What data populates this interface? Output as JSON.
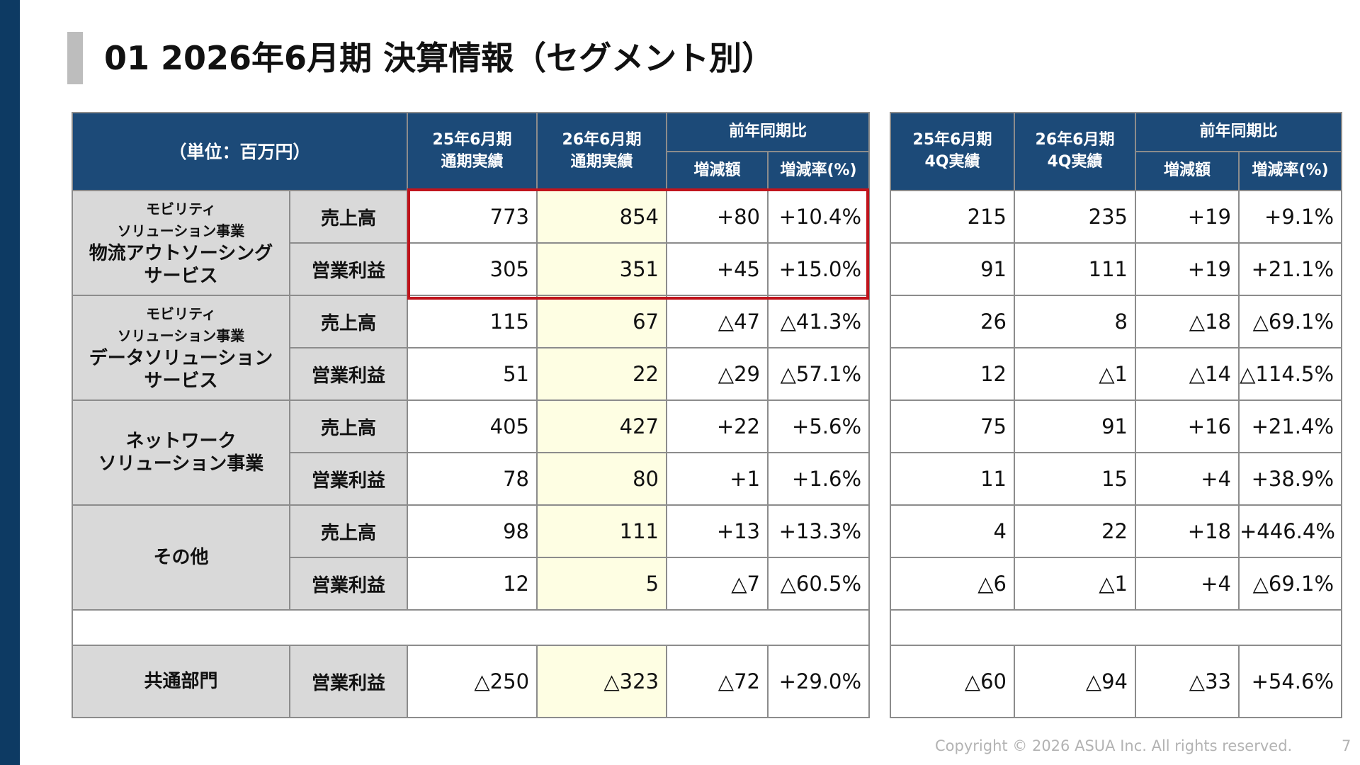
{
  "title": "01 2026年6月期 決算情報（セグメント別）",
  "header": {
    "unit": "（単位：百万円）",
    "full_prev": [
      "25年6月期",
      "通期実績"
    ],
    "full_cur": [
      "26年6月期",
      "通期実績"
    ],
    "q4_prev": [
      "25年6月期",
      "4Q実績"
    ],
    "q4_cur": [
      "26年6月期",
      "4Q実績"
    ],
    "yoy": "前年同期比",
    "diff": "増減額",
    "rate": "増減率(%)"
  },
  "segments": [
    {
      "label_small": [
        "モビリティ",
        "ソリューション事業"
      ],
      "label_main": [
        "物流アウトソーシング",
        "サービス"
      ],
      "rows": [
        {
          "metric": "売上高",
          "values": [
            "773",
            "854",
            "+80",
            "+10.4%",
            "215",
            "235",
            "+19",
            "+9.1%"
          ]
        },
        {
          "metric": "営業利益",
          "values": [
            "305",
            "351",
            "+45",
            "+15.0%",
            "91",
            "111",
            "+19",
            "+21.1%"
          ]
        }
      ]
    },
    {
      "label_small": [
        "モビリティ",
        "ソリューション事業"
      ],
      "label_main": [
        "データソリューション",
        "サービス"
      ],
      "rows": [
        {
          "metric": "売上高",
          "values": [
            "115",
            "67",
            "△47",
            "△41.3%",
            "26",
            "8",
            "△18",
            "△69.1%"
          ]
        },
        {
          "metric": "営業利益",
          "values": [
            "51",
            "22",
            "△29",
            "△57.1%",
            "12",
            "△1",
            "△14",
            "△114.5%"
          ]
        }
      ]
    },
    {
      "label_main": [
        "ネットワーク",
        "ソリューション事業"
      ],
      "rows": [
        {
          "metric": "売上高",
          "values": [
            "405",
            "427",
            "+22",
            "+5.6%",
            "75",
            "91",
            "+16",
            "+21.4%"
          ]
        },
        {
          "metric": "営業利益",
          "values": [
            "78",
            "80",
            "+1",
            "+1.6%",
            "11",
            "15",
            "+4",
            "+38.9%"
          ]
        }
      ]
    },
    {
      "label_main": [
        "その他"
      ],
      "rows": [
        {
          "metric": "売上高",
          "values": [
            "98",
            "111",
            "+13",
            "+13.3%",
            "4",
            "22",
            "+18",
            "+446.4%"
          ]
        },
        {
          "metric": "営業利益",
          "values": [
            "12",
            "5",
            "△7",
            "△60.5%",
            "△6",
            "△1",
            "+4",
            "△69.1%"
          ]
        }
      ]
    }
  ],
  "common": {
    "label": "共通部門",
    "metric": "営業利益",
    "values": [
      "△250",
      "△323",
      "△72",
      "+29.0%",
      "△60",
      "△94",
      "△33",
      "+54.6%"
    ]
  },
  "footer": {
    "copyright": "Copyright © 2026 ASUA Inc. All rights reserved.",
    "page": "7"
  },
  "colors": {
    "header_bg": "#1c4a78",
    "label_bg": "#d9d9d9",
    "highlight_col": "#fefee3",
    "highlight_border": "#c0141c",
    "left_band": "#0d3a63"
  }
}
